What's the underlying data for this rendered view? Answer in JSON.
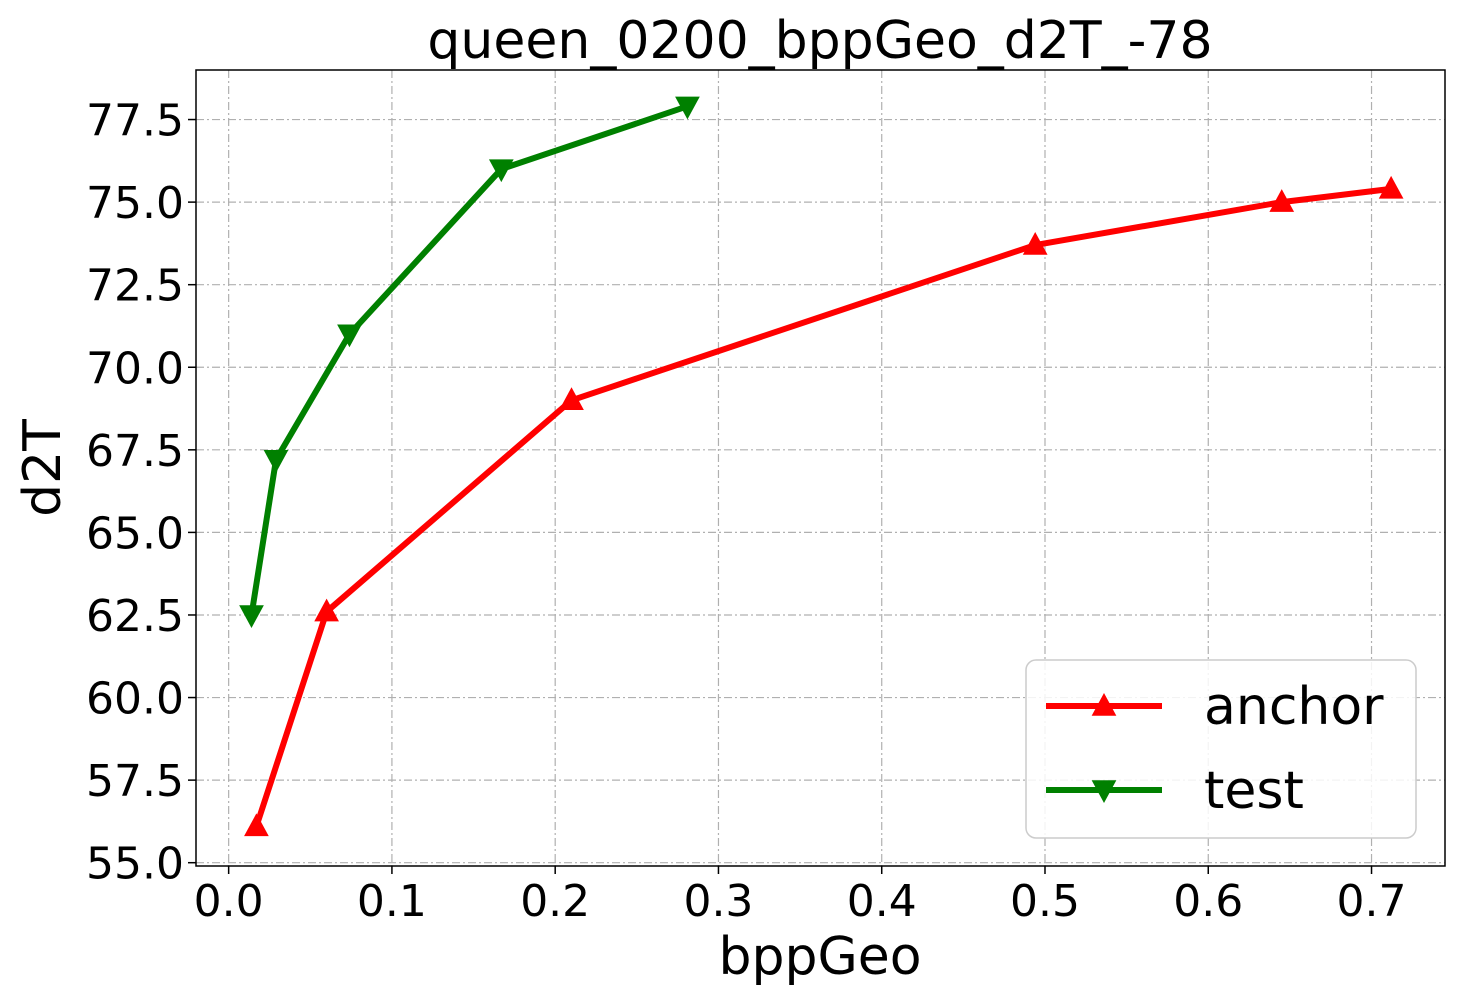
{
  "chart_data": {
    "type": "line",
    "title": "queen_0200_bppGeo_d2T_-78",
    "xlabel": "bppGeo",
    "ylabel": "d2T",
    "xlim": [
      -0.02,
      0.745
    ],
    "ylim": [
      54.9,
      79.0
    ],
    "xticks": [
      0.0,
      0.1,
      0.2,
      0.3,
      0.4,
      0.5,
      0.6,
      0.7
    ],
    "xtick_labels": [
      "0.0",
      "0.1",
      "0.2",
      "0.3",
      "0.4",
      "0.5",
      "0.6",
      "0.7"
    ],
    "yticks": [
      55.0,
      57.5,
      60.0,
      62.5,
      65.0,
      67.5,
      70.0,
      72.5,
      75.0,
      77.5
    ],
    "ytick_labels": [
      "55.0",
      "57.5",
      "60.0",
      "62.5",
      "65.0",
      "67.5",
      "70.0",
      "72.5",
      "75.0",
      "77.5"
    ],
    "grid": true,
    "legend_position": "lower-right",
    "series": [
      {
        "name": "anchor",
        "color": "#ff0000",
        "marker": "triangle-up",
        "x": [
          0.017,
          0.06,
          0.21,
          0.494,
          0.645,
          0.712
        ],
        "y": [
          56.1,
          62.6,
          69.0,
          73.7,
          75.0,
          75.4
        ]
      },
      {
        "name": "test",
        "color": "#008000",
        "marker": "triangle-down",
        "x": [
          0.014,
          0.029,
          0.074,
          0.167,
          0.281
        ],
        "y": [
          62.5,
          67.2,
          71.0,
          76.0,
          77.9
        ]
      }
    ]
  }
}
